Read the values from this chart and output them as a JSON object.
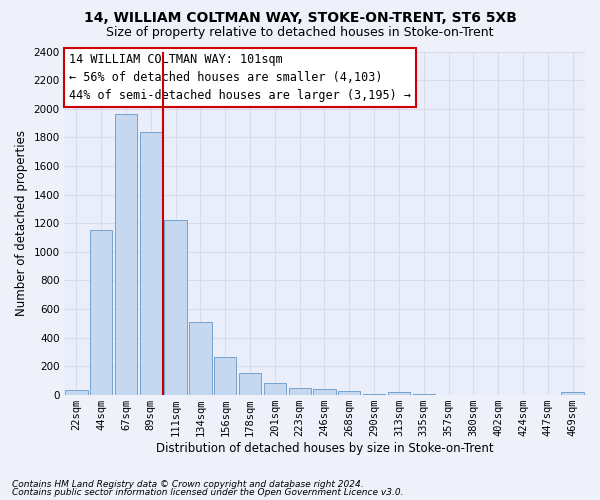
{
  "title1": "14, WILLIAM COLTMAN WAY, STOKE-ON-TRENT, ST6 5XB",
  "title2": "Size of property relative to detached houses in Stoke-on-Trent",
  "xlabel": "Distribution of detached houses by size in Stoke-on-Trent",
  "ylabel": "Number of detached properties",
  "bar_labels": [
    "22sqm",
    "44sqm",
    "67sqm",
    "89sqm",
    "111sqm",
    "134sqm",
    "156sqm",
    "178sqm",
    "201sqm",
    "223sqm",
    "246sqm",
    "268sqm",
    "290sqm",
    "313sqm",
    "335sqm",
    "357sqm",
    "380sqm",
    "402sqm",
    "424sqm",
    "447sqm",
    "469sqm"
  ],
  "bar_values": [
    30,
    1150,
    1960,
    1840,
    1220,
    510,
    265,
    155,
    80,
    48,
    42,
    28,
    8,
    18,
    8,
    0,
    0,
    0,
    0,
    0,
    18
  ],
  "bar_color": "#c5d8ef",
  "bar_edgecolor": "#6699cc",
  "vline_pos": 3.5,
  "vline_color": "#cc0000",
  "annotation_title": "14 WILLIAM COLTMAN WAY: 101sqm",
  "annotation_line1": "← 56% of detached houses are smaller (4,103)",
  "annotation_line2": "44% of semi-detached houses are larger (3,195) →",
  "annotation_edgecolor": "#cc0000",
  "ylim": [
    0,
    2400
  ],
  "yticks": [
    0,
    200,
    400,
    600,
    800,
    1000,
    1200,
    1400,
    1600,
    1800,
    2000,
    2200,
    2400
  ],
  "footnote1": "Contains HM Land Registry data © Crown copyright and database right 2024.",
  "footnote2": "Contains public sector information licensed under the Open Government Licence v3.0.",
  "bg_color": "#eef1fa",
  "plot_bg_color": "#eaedfa",
  "grid_color": "#d8dce8",
  "title_fontsize": 10,
  "subtitle_fontsize": 9,
  "label_fontsize": 8.5,
  "tick_fontsize": 7.5,
  "annotation_fontsize": 8.5
}
